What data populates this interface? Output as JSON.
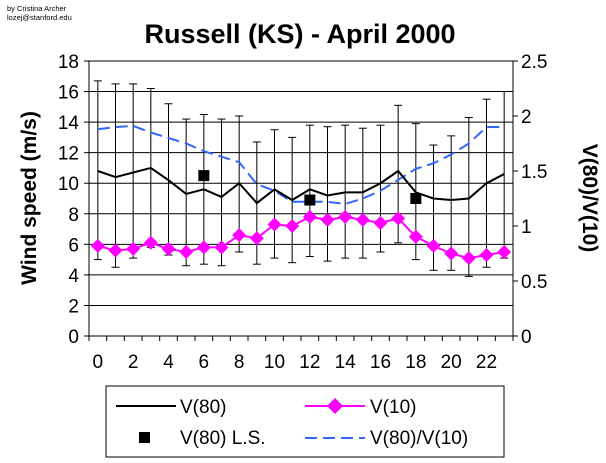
{
  "credit_lines": [
    "by Cristina Archer",
    "lozej@stanford.edu"
  ],
  "chart_data": {
    "type": "line",
    "title": "Russell (KS) - April 2000",
    "xlabel": "",
    "ylabel": "Wind speed (m/s)",
    "y2label": "V(80)/V(10)",
    "xlim": [
      -0.5,
      23.5
    ],
    "ylim": [
      0,
      18
    ],
    "y2lim": [
      0,
      2.5
    ],
    "x_ticks": [
      0,
      2,
      4,
      6,
      8,
      10,
      12,
      14,
      16,
      18,
      20,
      22
    ],
    "y_ticks": [
      0,
      2,
      4,
      6,
      8,
      10,
      12,
      14,
      16,
      18
    ],
    "y2_ticks": [
      "0",
      "0.5",
      "1",
      "1.5",
      "2",
      "2.5"
    ],
    "y2_tick_values": [
      0,
      0.5,
      1,
      1.5,
      2,
      2.5
    ],
    "grid": "horizontal",
    "legend_position": "bottom",
    "x": [
      0,
      1,
      2,
      3,
      4,
      5,
      6,
      7,
      8,
      9,
      10,
      11,
      12,
      13,
      14,
      15,
      16,
      17,
      18,
      19,
      20,
      21,
      22,
      23
    ],
    "series": [
      {
        "name": "V(80)",
        "axis": "left",
        "style": "line",
        "color": "#000000",
        "values": [
          10.8,
          10.4,
          10.7,
          11.0,
          10.2,
          9.3,
          9.6,
          9.1,
          10.0,
          8.7,
          9.6,
          8.9,
          9.6,
          9.2,
          9.4,
          9.4,
          10.0,
          10.8,
          9.4,
          9.0,
          8.9,
          9.0,
          10.0,
          10.6
        ],
        "error_upper": [
          16.7,
          16.5,
          16.5,
          16.2,
          15.2,
          14.2,
          14.5,
          14.2,
          14.4,
          12.7,
          13.5,
          13.0,
          13.8,
          13.7,
          13.8,
          13.6,
          13.8,
          15.1,
          13.9,
          12.5,
          13.1,
          14.3,
          15.5,
          16.0
        ],
        "error_lower": [
          5.0,
          4.5,
          5.1,
          5.8,
          5.3,
          4.6,
          4.7,
          4.6,
          5.5,
          4.7,
          5.1,
          4.8,
          5.2,
          4.9,
          5.1,
          5.1,
          5.5,
          6.1,
          5.0,
          4.3,
          4.3,
          3.9,
          4.5,
          5.1
        ]
      },
      {
        "name": "V(10)",
        "axis": "left",
        "style": "diamond-line",
        "color": "#ff00ff",
        "values": [
          5.9,
          5.6,
          5.7,
          6.1,
          5.7,
          5.5,
          5.8,
          5.8,
          6.6,
          6.4,
          7.3,
          7.2,
          7.8,
          7.6,
          7.8,
          7.6,
          7.4,
          7.7,
          6.5,
          5.9,
          5.4,
          5.1,
          5.3,
          5.5
        ]
      },
      {
        "name": "V(80) L.S.",
        "axis": "left",
        "style": "square",
        "color": "#000000",
        "x": [
          6,
          12,
          18
        ],
        "values": [
          10.5,
          8.9,
          9.0
        ]
      },
      {
        "name": "V(80)/V(10)",
        "axis": "right",
        "style": "dashed-line",
        "color": "#3366ff",
        "values": [
          1.88,
          1.9,
          1.91,
          1.85,
          1.8,
          1.75,
          1.68,
          1.63,
          1.58,
          1.38,
          1.32,
          1.22,
          1.22,
          1.22,
          1.2,
          1.25,
          1.32,
          1.42,
          1.52,
          1.57,
          1.65,
          1.75,
          1.9,
          1.9
        ]
      }
    ]
  }
}
